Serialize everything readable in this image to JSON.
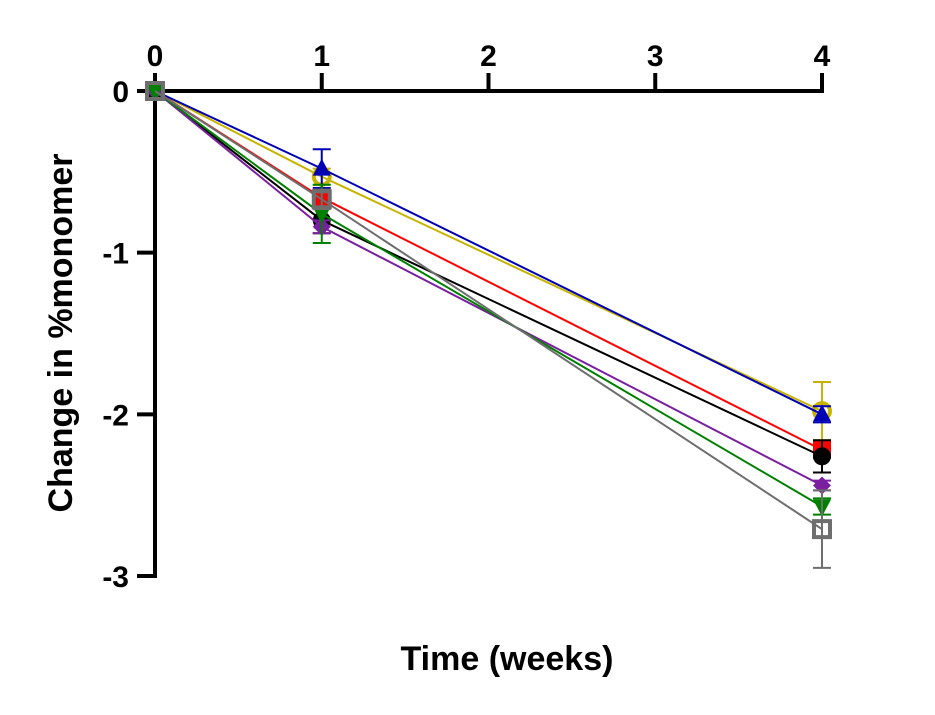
{
  "chart_data": {
    "type": "line",
    "title": "",
    "xlabel": "Time (weeks)",
    "ylabel": "Change in %monomer",
    "x_ticks": [
      "0",
      "1",
      "2",
      "3",
      "4"
    ],
    "y_ticks": [
      "0",
      "-1",
      "-2",
      "-3"
    ],
    "xlim": [
      0,
      4
    ],
    "ylim": [
      -3,
      0
    ],
    "x_axis_position": "top",
    "grid": false,
    "legend": "none",
    "x": [
      0,
      1,
      4
    ],
    "series": [
      {
        "color": "#c8b400",
        "marker": "open-circle",
        "values": [
          0,
          -0.53,
          -1.98
        ],
        "errors": [
          0,
          0.05,
          0.18
        ]
      },
      {
        "color": "#0000b4",
        "marker": "triangle-up",
        "values": [
          0,
          -0.48,
          -2.0
        ],
        "errors": [
          0,
          0.12,
          0.05
        ]
      },
      {
        "color": "#ff0000",
        "marker": "square",
        "values": [
          0,
          -0.66,
          -2.22
        ],
        "errors": [
          0,
          0.04,
          0.05
        ]
      },
      {
        "color": "#000000",
        "marker": "circle",
        "values": [
          0,
          -0.8,
          -2.26
        ],
        "errors": [
          0,
          0.08,
          0.1
        ]
      },
      {
        "color": "#7a1fa0",
        "marker": "diamond",
        "values": [
          0,
          -0.84,
          -2.44
        ],
        "errors": [
          0,
          0.04,
          0.03
        ]
      },
      {
        "color": "#008000",
        "marker": "triangle-down",
        "values": [
          0,
          -0.76,
          -2.57
        ],
        "errors": [
          0,
          0.18,
          0.05
        ]
      },
      {
        "color": "#6e6e6e",
        "marker": "open-square",
        "values": [
          0,
          -0.67,
          -2.71
        ],
        "errors": [
          0,
          0.06,
          0.24
        ]
      }
    ]
  }
}
